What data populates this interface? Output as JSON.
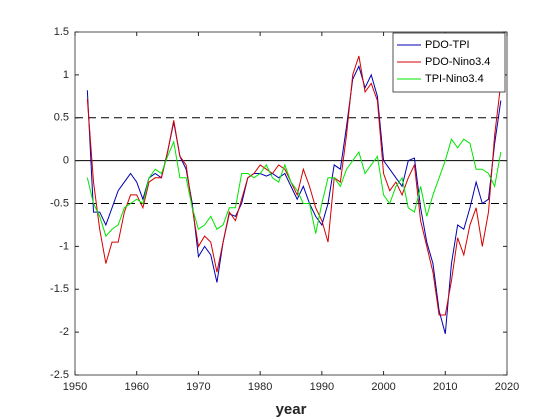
{
  "chart_data": {
    "type": "line",
    "x_label": "year",
    "xlim": [
      1950,
      2020
    ],
    "xticks": [
      1950,
      1960,
      1970,
      1980,
      1990,
      2000,
      2010,
      2020
    ],
    "ylim": [
      -2.5,
      1.5
    ],
    "yticks": [
      -2.5,
      -2,
      -1.5,
      -1,
      -0.5,
      0,
      0.5,
      1,
      1.5
    ],
    "legend": "upper right",
    "reference_lines": [
      {
        "value": 0.5,
        "dashed": true
      },
      {
        "value": -0.5,
        "dashed": true
      },
      {
        "value": 0,
        "dashed": false
      }
    ],
    "x": [
      1952,
      1953,
      1954,
      1955,
      1956,
      1957,
      1958,
      1959,
      1960,
      1961,
      1962,
      1963,
      1964,
      1965,
      1966,
      1967,
      1968,
      1969,
      1970,
      1971,
      1972,
      1973,
      1974,
      1975,
      1976,
      1977,
      1978,
      1979,
      1980,
      1981,
      1982,
      1983,
      1984,
      1985,
      1986,
      1987,
      1988,
      1989,
      1990,
      1991,
      1992,
      1993,
      1994,
      1995,
      1996,
      1997,
      1998,
      1999,
      2000,
      2001,
      2002,
      2003,
      2004,
      2005,
      2006,
      2007,
      2008,
      2009,
      2010,
      2011,
      2012,
      2013,
      2014,
      2015,
      2016,
      2017,
      2018,
      2019
    ],
    "series": [
      {
        "name": "PDO-TPI",
        "color": "#0000b3",
        "values": [
          0.82,
          -0.6,
          -0.6,
          -0.75,
          -0.55,
          -0.35,
          -0.25,
          -0.15,
          -0.25,
          -0.45,
          -0.2,
          -0.15,
          -0.2,
          0.1,
          0.45,
          0.05,
          -0.1,
          -0.5,
          -1.12,
          -1.0,
          -1.1,
          -1.42,
          -0.95,
          -0.62,
          -0.65,
          -0.5,
          -0.2,
          -0.15,
          -0.15,
          -0.18,
          -0.15,
          -0.2,
          -0.15,
          -0.3,
          -0.45,
          -0.3,
          -0.5,
          -0.65,
          -0.75,
          -0.5,
          -0.05,
          -0.1,
          0.4,
          0.95,
          1.1,
          0.85,
          1.0,
          0.75,
          0.0,
          -0.1,
          -0.2,
          -0.3,
          0.0,
          0.03,
          -0.55,
          -0.95,
          -1.2,
          -1.75,
          -2.02,
          -1.2,
          -0.75,
          -0.8,
          -0.55,
          -0.25,
          -0.5,
          -0.45,
          0.2,
          0.7
        ]
      },
      {
        "name": "PDO-Nino3.4",
        "color": "#d40000",
        "values": [
          0.72,
          -0.25,
          -0.8,
          -1.2,
          -0.95,
          -0.95,
          -0.6,
          -0.4,
          -0.4,
          -0.55,
          -0.25,
          -0.2,
          -0.2,
          0.1,
          0.47,
          0.05,
          -0.05,
          -0.55,
          -1.0,
          -0.88,
          -0.95,
          -1.3,
          -0.95,
          -0.6,
          -0.7,
          -0.45,
          -0.2,
          -0.15,
          -0.05,
          -0.1,
          -0.15,
          -0.05,
          -0.1,
          -0.25,
          -0.4,
          -0.1,
          -0.3,
          -0.55,
          -0.7,
          -0.95,
          -0.2,
          -0.25,
          0.3,
          1.0,
          1.22,
          0.8,
          0.9,
          0.7,
          -0.15,
          -0.35,
          -0.25,
          -0.4,
          -0.2,
          -0.05,
          -0.7,
          -1.0,
          -1.3,
          -1.8,
          -1.8,
          -1.4,
          -0.9,
          -1.1,
          -0.75,
          -0.55,
          -1.0,
          -0.6,
          0.3,
          0.9
        ]
      },
      {
        "name": "TPI-Nino3.4",
        "color": "#00e600",
        "values": [
          -0.2,
          -0.5,
          -0.65,
          -0.88,
          -0.8,
          -0.75,
          -0.55,
          -0.5,
          -0.45,
          -0.5,
          -0.2,
          -0.1,
          -0.15,
          0.05,
          0.22,
          -0.2,
          -0.2,
          -0.55,
          -0.8,
          -0.75,
          -0.65,
          -0.8,
          -0.75,
          -0.55,
          -0.55,
          -0.15,
          -0.15,
          -0.2,
          -0.15,
          -0.05,
          -0.2,
          -0.25,
          -0.05,
          -0.25,
          -0.35,
          -0.5,
          -0.5,
          -0.85,
          -0.5,
          -0.2,
          -0.2,
          -0.3,
          -0.1,
          0.0,
          0.1,
          -0.15,
          -0.05,
          0.05,
          -0.4,
          -0.5,
          -0.3,
          -0.2,
          -0.55,
          -0.6,
          -0.3,
          -0.65,
          -0.4,
          -0.2,
          0.0,
          0.25,
          0.15,
          0.25,
          0.2,
          -0.1,
          -0.1,
          -0.15,
          -0.3,
          0.1
        ]
      }
    ]
  }
}
